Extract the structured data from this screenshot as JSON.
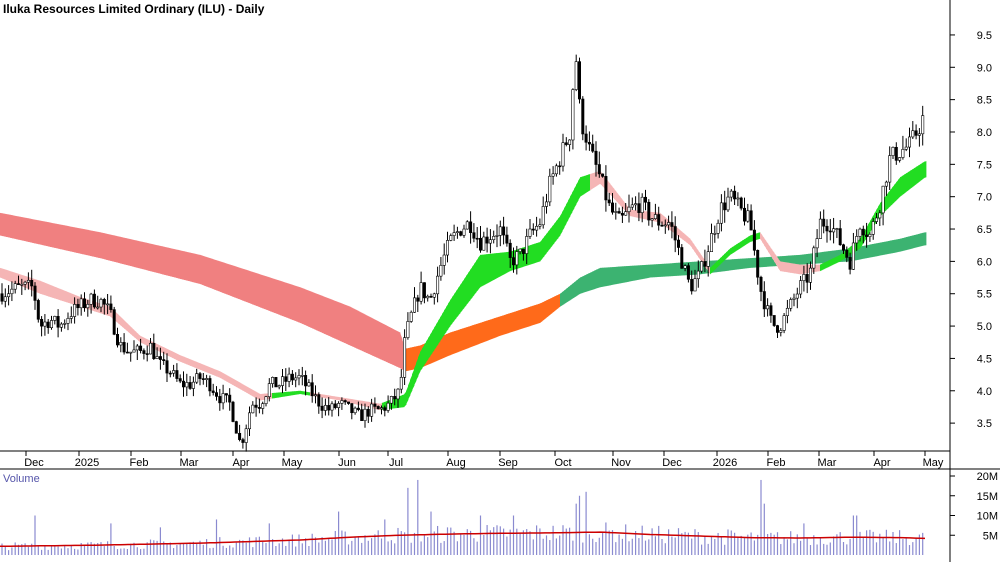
{
  "title": "Iluka Resources Limited Ordinary (ILU) - Daily",
  "volume_label": "Volume",
  "colors": {
    "up_candle": "#ffffff",
    "down_candle": "#000000",
    "long_ribbon_down": "#f08080",
    "long_ribbon_up": "#3cb371",
    "short_ribbon_down": "#f5b5b5",
    "short_ribbon_up": "#22dd22",
    "cross_ribbon": "#ff6a1a",
    "volume_bars": "#8a8ad0",
    "volume_avg": "#cc0000"
  },
  "chart_data": [
    {
      "type": "candlestick",
      "title": "Iluka Resources Limited Ordinary (ILU) - Daily",
      "x_ticks": [
        "Dec",
        "2025",
        "Feb",
        "Mar",
        "Apr",
        "May",
        "Jun",
        "Jul",
        "Aug",
        "Sep",
        "Oct",
        "Nov",
        "Dec",
        "2026",
        "Feb",
        "Mar",
        "Apr",
        "May"
      ],
      "y_ticks": [
        "3.5",
        "4.0",
        "4.5",
        "5.0",
        "5.5",
        "6.0",
        "6.5",
        "7.0",
        "7.5",
        "8.0",
        "8.5",
        "9.0",
        "9.5"
      ],
      "ylim": [
        3.1,
        9.7
      ],
      "grid": false,
      "price_path": {
        "x": [
          0,
          20,
          33,
          40,
          50,
          60,
          70,
          80,
          90,
          100,
          110,
          120,
          130,
          140,
          150,
          160,
          170,
          180,
          190,
          200,
          210,
          220,
          230,
          235,
          240,
          244,
          248,
          252,
          260,
          270,
          280,
          290,
          300,
          310,
          320,
          330,
          340,
          350,
          360,
          370,
          380,
          390,
          400,
          405,
          410,
          420,
          430,
          440,
          450,
          460,
          470,
          480,
          490,
          500,
          510,
          520,
          530,
          540,
          550,
          560,
          570,
          575,
          578,
          580,
          585,
          590,
          595,
          600,
          610,
          620,
          630,
          640,
          650,
          660,
          670,
          680,
          690,
          700,
          710,
          720,
          730,
          740,
          750,
          760,
          770,
          775,
          780,
          790,
          800,
          810,
          820,
          830,
          840,
          850,
          860,
          870,
          880,
          890,
          900,
          910,
          920,
          925
        ],
        "close": [
          5.5,
          5.6,
          5.6,
          5.0,
          5.1,
          5.0,
          5.2,
          5.3,
          5.4,
          5.4,
          5.2,
          4.7,
          4.6,
          4.6,
          4.7,
          4.4,
          4.3,
          4.1,
          4.1,
          4.2,
          4.1,
          3.9,
          3.8,
          3.5,
          3.2,
          3.3,
          3.6,
          3.8,
          3.8,
          4.1,
          4.1,
          4.2,
          4.2,
          4.0,
          3.8,
          3.7,
          3.8,
          3.7,
          3.6,
          3.7,
          3.7,
          3.8,
          4.0,
          4.8,
          5.1,
          5.6,
          5.4,
          5.9,
          6.3,
          6.5,
          6.6,
          6.3,
          6.4,
          6.5,
          6.0,
          6.1,
          6.4,
          6.6,
          7.2,
          7.6,
          8.0,
          9.2,
          9.0,
          8.2,
          8.0,
          7.7,
          7.5,
          7.3,
          6.8,
          6.6,
          6.8,
          6.9,
          6.7,
          6.6,
          6.6,
          6.1,
          5.6,
          5.8,
          6.3,
          6.8,
          7.0,
          6.8,
          6.6,
          5.6,
          5.1,
          5.0,
          5.0,
          5.3,
          5.6,
          5.8,
          6.6,
          6.6,
          6.3,
          6.0,
          6.6,
          6.4,
          6.9,
          7.6,
          7.7,
          7.8,
          8.1,
          8.3
        ]
      },
      "long_ribbon": {
        "x": [
          0,
          100,
          200,
          300,
          350,
          400,
          405,
          420,
          450,
          500,
          540,
          560,
          580,
          600,
          650,
          700,
          750,
          800,
          850,
          900,
          925
        ],
        "upper": [
          6.75,
          6.45,
          6.1,
          5.6,
          5.3,
          4.9,
          4.65,
          4.7,
          4.9,
          5.15,
          5.35,
          5.5,
          5.75,
          5.9,
          5.95,
          6.0,
          6.05,
          6.1,
          6.2,
          6.35,
          6.45
        ],
        "lower": [
          6.4,
          6.05,
          5.65,
          5.05,
          4.7,
          4.35,
          4.3,
          4.35,
          4.55,
          4.85,
          5.05,
          5.3,
          5.5,
          5.6,
          5.75,
          5.8,
          5.9,
          5.95,
          6.0,
          6.15,
          6.25
        ]
      },
      "short_ribbon": {
        "x": [
          0,
          40,
          80,
          110,
          140,
          180,
          220,
          260,
          300,
          340,
          380,
          405,
          420,
          450,
          480,
          510,
          540,
          560,
          580,
          600,
          630,
          660,
          690,
          710,
          730,
          750,
          760,
          780,
          800,
          820,
          840,
          860,
          880,
          900,
          925
        ],
        "upper": [
          5.9,
          5.7,
          5.45,
          5.3,
          4.85,
          4.55,
          4.3,
          3.95,
          4.0,
          3.9,
          3.8,
          3.95,
          4.6,
          5.4,
          6.1,
          6.15,
          6.3,
          6.7,
          7.3,
          7.4,
          6.8,
          6.75,
          6.35,
          5.9,
          6.2,
          6.4,
          6.45,
          6.0,
          5.95,
          5.95,
          6.1,
          6.35,
          6.9,
          7.3,
          7.55
        ],
        "lower": [
          5.75,
          5.5,
          5.3,
          5.15,
          4.75,
          4.45,
          4.2,
          3.85,
          3.95,
          3.85,
          3.7,
          3.75,
          4.3,
          5.0,
          5.6,
          5.85,
          6.0,
          6.4,
          7.0,
          7.2,
          6.7,
          6.6,
          6.25,
          5.8,
          6.1,
          6.3,
          6.35,
          5.85,
          5.8,
          5.85,
          6.0,
          6.2,
          6.7,
          7.0,
          7.3
        ]
      }
    },
    {
      "type": "bar",
      "title": "Volume",
      "y_ticks": [
        "5M",
        "10M",
        "15M",
        "20M"
      ],
      "ylim": [
        0,
        20
      ],
      "unit": "M",
      "avg_line": {
        "x": [
          0,
          100,
          200,
          300,
          350,
          400,
          450,
          500,
          550,
          600,
          650,
          700,
          750,
          800,
          850,
          900,
          925
        ],
        "values": [
          2.2,
          2.5,
          3.0,
          3.8,
          4.5,
          5.0,
          5.3,
          5.5,
          5.6,
          5.8,
          5.2,
          4.8,
          4.4,
          4.3,
          4.5,
          4.4,
          4.2
        ]
      },
      "spikes": {
        "x": [
          35,
          110,
          160,
          215,
          270,
          340,
          385,
          408,
          418,
          430,
          480,
          515,
          575,
          580,
          585,
          760,
          765,
          805,
          855
        ],
        "values": [
          10,
          8,
          7,
          9,
          8,
          11,
          9,
          17,
          19,
          11,
          10,
          10,
          13,
          15,
          16,
          19,
          13,
          8,
          10
        ]
      }
    }
  ]
}
